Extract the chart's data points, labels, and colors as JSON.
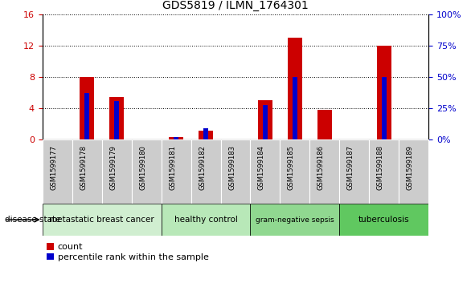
{
  "title": "GDS5819 / ILMN_1764301",
  "samples": [
    "GSM1599177",
    "GSM1599178",
    "GSM1599179",
    "GSM1599180",
    "GSM1599181",
    "GSM1599182",
    "GSM1599183",
    "GSM1599184",
    "GSM1599185",
    "GSM1599186",
    "GSM1599187",
    "GSM1599188",
    "GSM1599189"
  ],
  "count_values": [
    0,
    8.0,
    5.5,
    0,
    0.3,
    1.2,
    0,
    5.0,
    13.0,
    3.8,
    0,
    12.0,
    0
  ],
  "percentile_values": [
    0,
    37,
    31,
    0,
    2,
    9,
    0,
    28,
    50,
    0,
    0,
    50,
    0
  ],
  "count_color": "#cc0000",
  "percentile_color": "#0000cc",
  "ylim_left": [
    0,
    16
  ],
  "ylim_right": [
    0,
    100
  ],
  "yticks_left": [
    0,
    4,
    8,
    12,
    16
  ],
  "ytick_labels_left": [
    "0",
    "4",
    "8",
    "12",
    "16"
  ],
  "yticks_right": [
    0,
    25,
    50,
    75,
    100
  ],
  "ytick_labels_right": [
    "0%",
    "25%",
    "50%",
    "75%",
    "100%"
  ],
  "groups": [
    {
      "label": "metastatic breast cancer",
      "start": 0,
      "end": 3,
      "color": "#d0eed0"
    },
    {
      "label": "healthy control",
      "start": 4,
      "end": 6,
      "color": "#b8e8b8"
    },
    {
      "label": "gram-negative sepsis",
      "start": 7,
      "end": 9,
      "color": "#90d890"
    },
    {
      "label": "tuberculosis",
      "start": 10,
      "end": 12,
      "color": "#60c860"
    }
  ],
  "tick_bg_color": "#cccccc",
  "disease_label": "disease state",
  "legend_count": "count",
  "legend_percentile": "percentile rank within the sample",
  "bar_width": 0.5,
  "pct_bar_width": 0.15
}
